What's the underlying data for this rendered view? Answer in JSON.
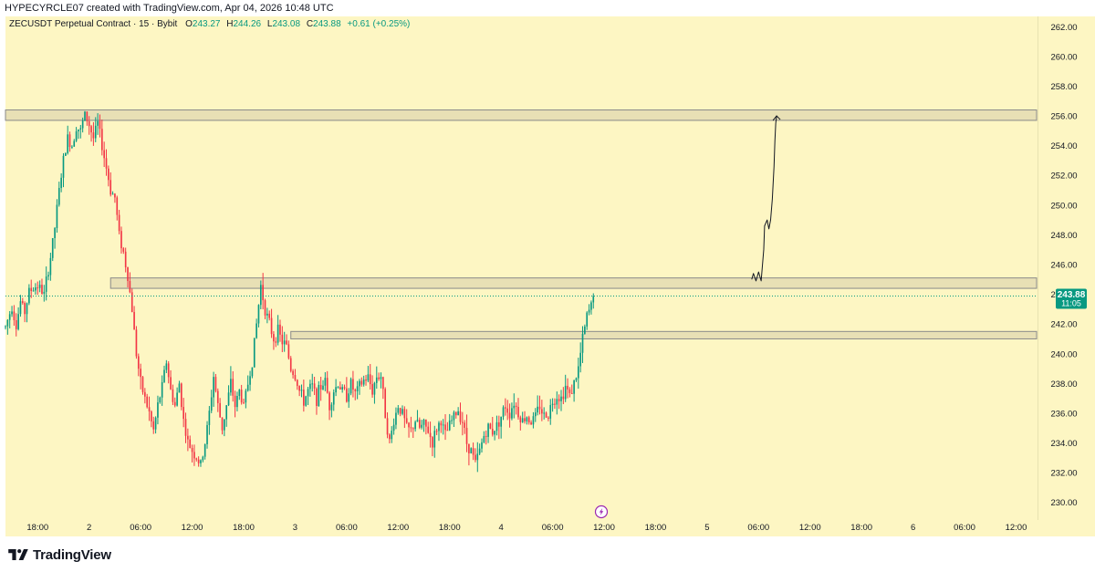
{
  "header": {
    "created_text": "HYPECYRCLE07 created with TradingView.com, Apr 04, 2026 10:48 UTC"
  },
  "legend": {
    "symbol": "ZECUSDT Perpetual Contract · 15 · Bybit",
    "o_label": "O",
    "o_value": "243.27",
    "h_label": "H",
    "h_value": "244.26",
    "l_label": "L",
    "l_value": "243.08",
    "c_label": "C",
    "c_value": "243.88",
    "change": "+0.61 (+0.25%)"
  },
  "price_tag": {
    "price": "243.88",
    "countdown": "11:05"
  },
  "footer": {
    "brand": "TradingView"
  },
  "colors": {
    "background": "#fdf6c3",
    "up": "#089981",
    "down": "#f23645",
    "zone_fill": "#e8e0b5",
    "zone_stroke": "#8a8a8a"
  },
  "chart_data": {
    "type": "candlestick",
    "ylim": [
      229,
      262.6
    ],
    "y_ticks": [
      230,
      232,
      234,
      236,
      238,
      240,
      242,
      244,
      246,
      248,
      250,
      252,
      254,
      256,
      258,
      260,
      262
    ],
    "y_tick_labels": [
      "230.00",
      "232.00",
      "234.00",
      "236.00",
      "238.00",
      "240.00",
      "242.00",
      "244.00",
      "246.00",
      "248.00",
      "250.00",
      "252.00",
      "254.00",
      "256.00",
      "258.00",
      "260.00",
      "262.00"
    ],
    "x_tick_labels": [
      "18:00",
      "2",
      "06:00",
      "12:00",
      "18:00",
      "3",
      "06:00",
      "12:00",
      "18:00",
      "4",
      "06:00",
      "12:00",
      "18:00",
      "5",
      "06:00",
      "12:00",
      "18:00",
      "6",
      "06:00",
      "12:00"
    ],
    "x_tick_hours": [
      18,
      24,
      30,
      36,
      42,
      48,
      54,
      60,
      66,
      72,
      78,
      84,
      90,
      96,
      102,
      108,
      114,
      120,
      126,
      132
    ],
    "x_range_hours": [
      14.25,
      134.5
    ],
    "last_price": 243.88,
    "zones": [
      {
        "from_hour": 13.5,
        "to_hour": 134.5,
        "low": 255.7,
        "high": 256.4
      },
      {
        "from_hour": 26.5,
        "to_hour": 134.5,
        "low": 244.4,
        "high": 245.1
      },
      {
        "from_hour": 47.5,
        "to_hour": 134.5,
        "low": 241.0,
        "high": 241.5
      }
    ],
    "projection_path": [
      [
        101.2,
        245.0
      ],
      [
        101.4,
        245.4
      ],
      [
        101.7,
        244.9
      ],
      [
        102.0,
        245.5
      ],
      [
        102.3,
        244.9
      ],
      [
        102.6,
        247.0
      ],
      [
        102.7,
        248.6
      ],
      [
        103.0,
        249.0
      ],
      [
        103.2,
        248.4
      ],
      [
        103.4,
        249.0
      ],
      [
        103.6,
        250.4
      ],
      [
        103.8,
        252.6
      ],
      [
        103.9,
        254.3
      ],
      [
        104.0,
        255.5
      ],
      [
        104.1,
        256.0
      ]
    ],
    "anchors": [
      [
        14.25,
        241.8
      ],
      [
        15.0,
        243.2
      ],
      [
        15.5,
        241.9
      ],
      [
        16.0,
        243.5
      ],
      [
        16.5,
        242.8
      ],
      [
        17.0,
        244.2
      ],
      [
        18.0,
        244.6
      ],
      [
        18.75,
        244.0
      ],
      [
        19.5,
        246.5
      ],
      [
        20.0,
        248.5
      ],
      [
        20.5,
        251.0
      ],
      [
        21.0,
        253.0
      ],
      [
        21.5,
        254.5
      ],
      [
        22.0,
        254.0
      ],
      [
        22.5,
        255.3
      ],
      [
        23.0,
        255.0
      ],
      [
        23.5,
        256.1
      ],
      [
        24.0,
        255.4
      ],
      [
        24.5,
        254.5
      ],
      [
        25.0,
        255.5
      ],
      [
        25.5,
        254.0
      ],
      [
        26.0,
        252.5
      ],
      [
        26.5,
        251.0
      ],
      [
        27.0,
        250.5
      ],
      [
        27.5,
        248.0
      ],
      [
        28.0,
        246.8
      ],
      [
        28.5,
        245.2
      ],
      [
        29.0,
        243.0
      ],
      [
        29.5,
        240.0
      ],
      [
        30.0,
        238.0
      ],
      [
        30.5,
        237.0
      ],
      [
        31.0,
        236.0
      ],
      [
        31.5,
        234.8
      ],
      [
        32.0,
        236.5
      ],
      [
        32.5,
        237.8
      ],
      [
        33.0,
        239.5
      ],
      [
        33.5,
        237.5
      ],
      [
        34.0,
        236.5
      ],
      [
        34.5,
        238.0
      ],
      [
        35.0,
        235.5
      ],
      [
        35.5,
        234.0
      ],
      [
        36.0,
        233.5
      ],
      [
        36.5,
        233.0
      ],
      [
        37.0,
        232.5
      ],
      [
        37.5,
        234.0
      ],
      [
        38.0,
        236.0
      ],
      [
        38.5,
        238.5
      ],
      [
        39.0,
        236.5
      ],
      [
        39.5,
        235.0
      ],
      [
        40.0,
        236.5
      ],
      [
        40.5,
        238.0
      ],
      [
        41.0,
        236.5
      ],
      [
        41.5,
        237.5
      ],
      [
        42.0,
        236.5
      ],
      [
        42.5,
        238.0
      ],
      [
        43.0,
        239.5
      ],
      [
        43.5,
        242.0
      ],
      [
        44.0,
        244.6
      ],
      [
        44.5,
        243.0
      ],
      [
        45.0,
        242.0
      ],
      [
        45.5,
        241.0
      ],
      [
        46.0,
        241.5
      ],
      [
        46.5,
        240.8
      ],
      [
        47.0,
        240.5
      ],
      [
        47.5,
        239.0
      ],
      [
        48.0,
        238.5
      ],
      [
        48.5,
        237.5
      ],
      [
        49.0,
        236.8
      ],
      [
        49.5,
        237.5
      ],
      [
        50.0,
        237.8
      ],
      [
        50.5,
        237.0
      ],
      [
        51.0,
        237.8
      ],
      [
        51.5,
        238.2
      ],
      [
        52.0,
        236.5
      ],
      [
        52.5,
        237.5
      ],
      [
        53.0,
        238.0
      ],
      [
        53.5,
        237.5
      ],
      [
        54.0,
        237.2
      ],
      [
        54.5,
        238.0
      ],
      [
        55.0,
        237.3
      ],
      [
        55.5,
        237.8
      ],
      [
        56.0,
        238.2
      ],
      [
        56.5,
        238.4
      ],
      [
        57.0,
        237.5
      ],
      [
        57.5,
        238.5
      ],
      [
        58.0,
        238.5
      ],
      [
        58.5,
        236.0
      ],
      [
        59.0,
        234.0
      ],
      [
        59.5,
        235.5
      ],
      [
        60.0,
        236.5
      ],
      [
        60.5,
        236.0
      ],
      [
        61.0,
        235.0
      ],
      [
        61.5,
        234.8
      ],
      [
        62.0,
        235.5
      ],
      [
        62.5,
        235.0
      ],
      [
        63.0,
        235.2
      ],
      [
        63.5,
        234.8
      ],
      [
        64.0,
        234.0
      ],
      [
        64.5,
        235.0
      ],
      [
        65.0,
        235.5
      ],
      [
        65.5,
        234.5
      ],
      [
        66.0,
        235.2
      ],
      [
        66.5,
        235.8
      ],
      [
        67.0,
        236.2
      ],
      [
        67.5,
        235.5
      ],
      [
        68.0,
        234.0
      ],
      [
        68.5,
        233.5
      ],
      [
        69.0,
        232.6
      ],
      [
        69.5,
        233.5
      ],
      [
        70.0,
        234.5
      ],
      [
        70.5,
        235.0
      ],
      [
        71.0,
        234.8
      ],
      [
        71.5,
        235.2
      ],
      [
        72.0,
        235.8
      ],
      [
        72.5,
        236.5
      ],
      [
        73.0,
        236.0
      ],
      [
        73.5,
        236.8
      ],
      [
        74.0,
        236.0
      ],
      [
        74.5,
        235.5
      ],
      [
        75.0,
        235.8
      ],
      [
        75.5,
        235.4
      ],
      [
        76.0,
        235.8
      ],
      [
        76.5,
        236.5
      ],
      [
        77.0,
        235.8
      ],
      [
        77.5,
        236.0
      ],
      [
        78.0,
        236.8
      ],
      [
        78.5,
        237.2
      ],
      [
        79.0,
        237.0
      ],
      [
        79.5,
        237.8
      ],
      [
        80.0,
        237.2
      ],
      [
        80.5,
        238.0
      ],
      [
        81.0,
        239.0
      ],
      [
        81.5,
        241.0
      ],
      [
        82.0,
        242.5
      ],
      [
        82.5,
        243.3
      ],
      [
        82.75,
        243.88
      ]
    ]
  }
}
